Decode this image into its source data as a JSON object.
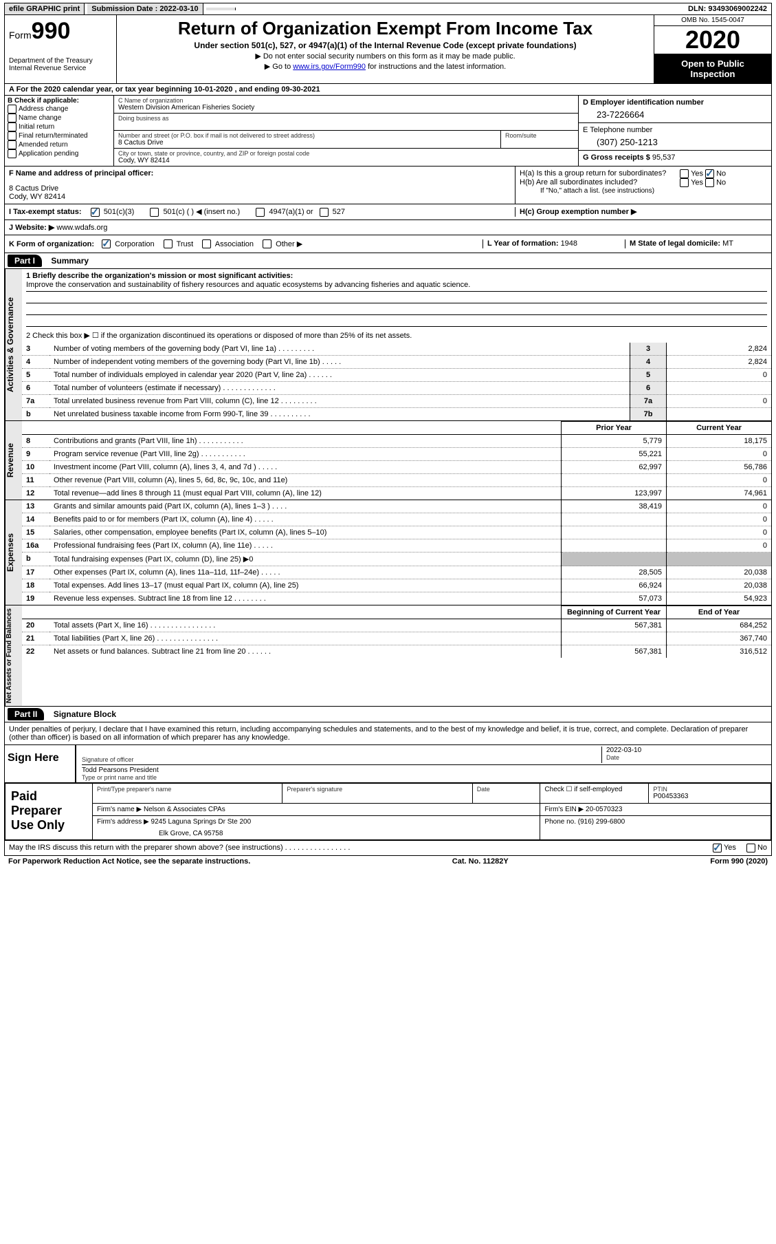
{
  "topbar": {
    "efile": "efile GRAPHIC print",
    "submission_label": "Submission Date : 2022-03-10",
    "dln": "DLN: 93493069002242"
  },
  "header": {
    "form_word": "Form",
    "form_num": "990",
    "dept1": "Department of the Treasury",
    "dept2": "Internal Revenue Service",
    "title": "Return of Organization Exempt From Income Tax",
    "sub": "Under section 501(c), 527, or 4947(a)(1) of the Internal Revenue Code (except private foundations)",
    "note1": "▶ Do not enter social security numbers on this form as it may be made public.",
    "note2_pre": "▶ Go to ",
    "note2_link": "www.irs.gov/Form990",
    "note2_post": " for instructions and the latest information.",
    "omb": "OMB No. 1545-0047",
    "year": "2020",
    "inspect1": "Open to Public",
    "inspect2": "Inspection"
  },
  "line_a": "A For the 2020 calendar year, or tax year beginning 10-01-2020    , and ending 09-30-2021",
  "section_b": {
    "label": "B Check if applicable:",
    "opts": [
      "Address change",
      "Name change",
      "Initial return",
      "Final return/terminated",
      "Amended return",
      "Application pending"
    ]
  },
  "section_c": {
    "name_label": "C Name of organization",
    "name": "Western Division American Fisheries Society",
    "dba_label": "Doing business as",
    "street_label": "Number and street (or P.O. box if mail is not delivered to street address)",
    "room_label": "Room/suite",
    "street": "8 Cactus Drive",
    "city_label": "City or town, state or province, country, and ZIP or foreign postal code",
    "city": "Cody, WY  82414"
  },
  "section_d": {
    "label": "D Employer identification number",
    "ein": "23-7226664",
    "tel_label": "E Telephone number",
    "tel": "(307) 250-1213",
    "gross_label": "G Gross receipts $ ",
    "gross": "95,537"
  },
  "section_f": {
    "label": "F Name and address of principal officer:",
    "addr1": "8 Cactus Drive",
    "addr2": "Cody, WY  82414"
  },
  "section_h": {
    "ha_label": "H(a)  Is this a group return for subordinates?",
    "hb_label": "H(b)  Are all subordinates included?",
    "hb_note": "If \"No,\" attach a list. (see instructions)",
    "hc_label": "H(c)  Group exemption number ▶",
    "yes": "Yes",
    "no": "No"
  },
  "status": {
    "i_label": "I  Tax-exempt status:",
    "o501c3": "501(c)(3)",
    "o501c": "501(c) (   ) ◀ (insert no.)",
    "o4947": "4947(a)(1) or",
    "o527": "527"
  },
  "website": {
    "label": "J Website: ▶ ",
    "url": "www.wdafs.org"
  },
  "section_k": {
    "label": "K Form of organization:",
    "corp": "Corporation",
    "trust": "Trust",
    "assoc": "Association",
    "other": "Other ▶",
    "l_label": "L Year of formation: ",
    "l_val": "1948",
    "m_label": "M State of legal domicile: ",
    "m_val": "MT"
  },
  "part1": {
    "header": "Part I",
    "title": "Summary",
    "q1_label": "1  Briefly describe the organization's mission or most significant activities:",
    "q1_text": "Improve the conservation and sustainability of fishery resources and aquatic ecosystems by advancing fisheries and aquatic science.",
    "q2": "2  Check this box ▶ ☐  if the organization discontinued its operations or disposed of more than 25% of its net assets.",
    "rows_gov": [
      {
        "n": "3",
        "t": "Number of voting members of the governing body (Part VI, line 1a)  .    .    .    .    .    .    .    .    .",
        "i": "3",
        "v": "2,824"
      },
      {
        "n": "4",
        "t": "Number of independent voting members of the governing body (Part VI, line 1b)  .    .    .    .    .",
        "i": "4",
        "v": "2,824"
      },
      {
        "n": "5",
        "t": "Total number of individuals employed in calendar year 2020 (Part V, line 2a)  .    .    .    .    .    .",
        "i": "5",
        "v": "0"
      },
      {
        "n": "6",
        "t": "Total number of volunteers (estimate if necessary)  .    .    .    .    .    .    .    .    .    .    .    .    .",
        "i": "6",
        "v": ""
      },
      {
        "n": "7a",
        "t": "Total unrelated business revenue from Part VIII, column (C), line 12  .    .    .    .    .    .    .    .    .",
        "i": "7a",
        "v": "0"
      },
      {
        "n": "b",
        "t": "Net unrelated business taxable income from Form 990-T, line 39  .    .    .    .    .    .    .    .    .    .",
        "i": "7b",
        "v": ""
      }
    ],
    "prior_hdr": "Prior Year",
    "current_hdr": "Current Year",
    "rows_rev": [
      {
        "n": "8",
        "t": "Contributions and grants (Part VIII, line 1h)  .    .    .    .    .    .    .    .    .    .    .",
        "p": "5,779",
        "c": "18,175"
      },
      {
        "n": "9",
        "t": "Program service revenue (Part VIII, line 2g)  .    .    .    .    .    .    .    .    .    .    .",
        "p": "55,221",
        "c": "0"
      },
      {
        "n": "10",
        "t": "Investment income (Part VIII, column (A), lines 3, 4, and 7d )  .    .    .    .    .",
        "p": "62,997",
        "c": "56,786"
      },
      {
        "n": "11",
        "t": "Other revenue (Part VIII, column (A), lines 5, 6d, 8c, 9c, 10c, and 11e)",
        "p": "",
        "c": "0"
      },
      {
        "n": "12",
        "t": "Total revenue—add lines 8 through 11 (must equal Part VIII, column (A), line 12)",
        "p": "123,997",
        "c": "74,961"
      }
    ],
    "rows_exp": [
      {
        "n": "13",
        "t": "Grants and similar amounts paid (Part IX, column (A), lines 1–3 )  .    .    .    .",
        "p": "38,419",
        "c": "0"
      },
      {
        "n": "14",
        "t": "Benefits paid to or for members (Part IX, column (A), line 4)  .    .    .    .    .",
        "p": "",
        "c": "0"
      },
      {
        "n": "15",
        "t": "Salaries, other compensation, employee benefits (Part IX, column (A), lines 5–10)",
        "p": "",
        "c": "0"
      },
      {
        "n": "16a",
        "t": "Professional fundraising fees (Part IX, column (A), line 11e)  .    .    .    .    .",
        "p": "",
        "c": "0"
      },
      {
        "n": "b",
        "t": "Total fundraising expenses (Part IX, column (D), line 25) ▶0",
        "p": "gray",
        "c": "gray"
      },
      {
        "n": "17",
        "t": "Other expenses (Part IX, column (A), lines 11a–11d, 11f–24e)  .    .    .    .    .",
        "p": "28,505",
        "c": "20,038"
      },
      {
        "n": "18",
        "t": "Total expenses. Add lines 13–17 (must equal Part IX, column (A), line 25)",
        "p": "66,924",
        "c": "20,038"
      },
      {
        "n": "19",
        "t": "Revenue less expenses. Subtract line 18 from line 12  .    .    .    .    .    .    .    .",
        "p": "57,073",
        "c": "54,923"
      }
    ],
    "begin_hdr": "Beginning of Current Year",
    "end_hdr": "End of Year",
    "rows_net": [
      {
        "n": "20",
        "t": "Total assets (Part X, line 16)  .    .    .    .    .    .    .    .    .    .    .    .    .    .    .    .",
        "p": "567,381",
        "c": "684,252"
      },
      {
        "n": "21",
        "t": "Total liabilities (Part X, line 26)  .    .    .    .    .    .    .    .    .    .    .    .    .    .    .",
        "p": "",
        "c": "367,740"
      },
      {
        "n": "22",
        "t": "Net assets or fund balances. Subtract line 21 from line 20  .    .    .    .    .    .",
        "p": "567,381",
        "c": "316,512"
      }
    ],
    "vtab_gov": "Activities & Governance",
    "vtab_rev": "Revenue",
    "vtab_exp": "Expenses",
    "vtab_net": "Net Assets or Fund Balances"
  },
  "part2": {
    "header": "Part II",
    "title": "Signature Block",
    "declaration": "Under penalties of perjury, I declare that I have examined this return, including accompanying schedules and statements, and to the best of my knowledge and belief, it is true, correct, and complete. Declaration of preparer (other than officer) is based on all information of which preparer has any knowledge."
  },
  "sign": {
    "label": "Sign Here",
    "sig_of_officer": "Signature of officer",
    "date_label": "Date",
    "date": "2022-03-10",
    "name": "Todd Pearsons  President",
    "name_label": "Type or print name and title"
  },
  "prep": {
    "label": "Paid Preparer Use Only",
    "h1": "Print/Type preparer's name",
    "h2": "Preparer's signature",
    "h3": "Date",
    "h4_pre": "Check ☐ if self-employed",
    "h5": "PTIN",
    "ptin": "P00453363",
    "firm_name_label": "Firm's name     ▶ ",
    "firm_name": "Nelson & Associates CPAs",
    "firm_ein_label": "Firm's EIN ▶ ",
    "firm_ein": "20-0570323",
    "firm_addr_label": "Firm's address ▶ ",
    "firm_addr1": "9245 Laguna Springs Dr Ste 200",
    "firm_addr2": "Elk Grove, CA   95758",
    "phone_label": "Phone no. ",
    "phone": "(916) 299-6800",
    "discuss": "May the IRS discuss this return with the preparer shown above? (see instructions)  .    .    .    .    .    .    .    .    .    .    .    .    .    .    .    .",
    "yes": "Yes",
    "no": "No"
  },
  "footer": {
    "left": "For Paperwork Reduction Act Notice, see the separate instructions.",
    "mid": "Cat. No. 11282Y",
    "right": "Form 990 (2020)"
  }
}
